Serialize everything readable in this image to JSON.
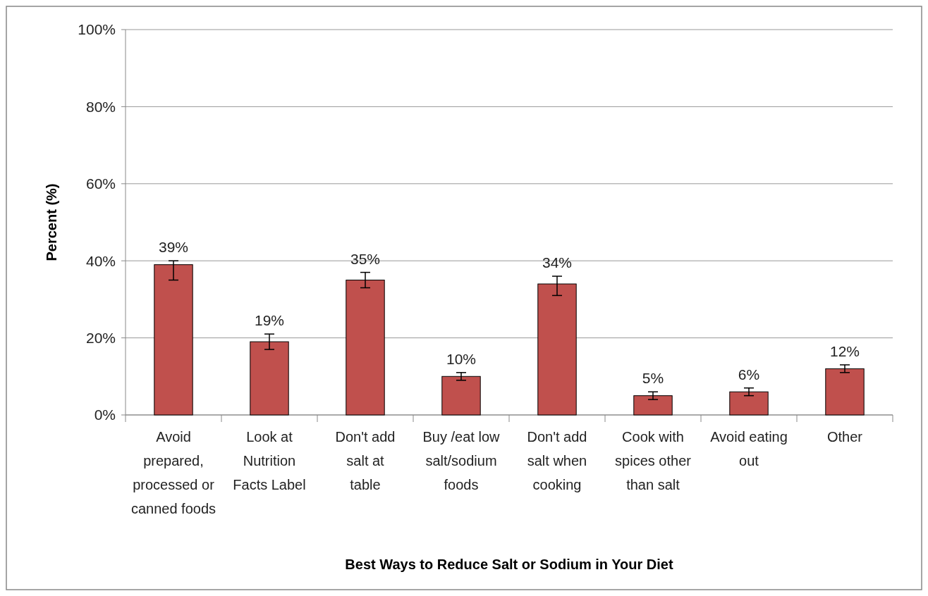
{
  "chart_data": {
    "type": "bar",
    "xlabel": "Best Ways to Reduce Salt or Sodium in Your Diet",
    "ylabel": "Percent (%)",
    "categories": [
      "Avoid prepared, processed or canned foods",
      "Look at Nutrition Facts Label",
      "Don't add salt at table",
      "Buy /eat low salt/sodium foods",
      "Don't add salt when cooking",
      "Cook with spices other than salt",
      "Avoid eating out",
      "Other"
    ],
    "values": [
      39,
      19,
      35,
      10,
      34,
      5,
      6,
      12
    ],
    "errors": [
      [
        35,
        40
      ],
      [
        17,
        21
      ],
      [
        33,
        37
      ],
      [
        9,
        11
      ],
      [
        31,
        36
      ],
      [
        4,
        6
      ],
      [
        5,
        7
      ],
      [
        11,
        13
      ]
    ],
    "value_labels": [
      "39%",
      "19%",
      "35%",
      "10%",
      "34%",
      "5%",
      "6%",
      "12%"
    ],
    "color": "#c0504d",
    "ylim": [
      0,
      100
    ],
    "yticks": [
      {
        "value": 0,
        "label": "0%"
      },
      {
        "value": 20,
        "label": "20%"
      },
      {
        "value": 40,
        "label": "40%"
      },
      {
        "value": 60,
        "label": "60%"
      },
      {
        "value": 80,
        "label": "80%"
      },
      {
        "value": 100,
        "label": "100%"
      }
    ],
    "grid": "y"
  }
}
